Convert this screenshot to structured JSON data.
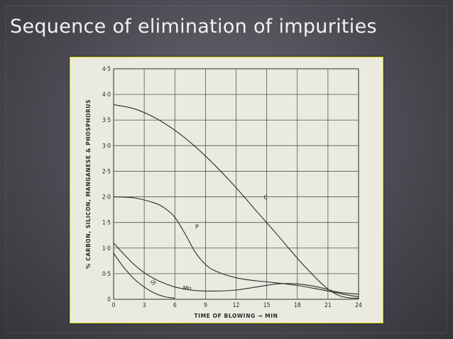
{
  "slide": {
    "title": "Sequence of elimination of impurities"
  },
  "chart_data": {
    "type": "line",
    "xlabel": "TIME OF BLOWING → MIN",
    "ylabel": "% CARBON, SILICON, MANGANESE & PHOSPHORUS",
    "xlim": [
      0,
      24
    ],
    "ylim": [
      0,
      4.5
    ],
    "x_ticks": [
      0,
      3,
      6,
      9,
      12,
      15,
      18,
      21,
      24
    ],
    "y_ticks": [
      0,
      0.5,
      1.0,
      1.5,
      2.0,
      2.5,
      3.0,
      3.5,
      4.0,
      4.5
    ],
    "x_tick_labels": [
      "0",
      "3",
      "6",
      "9",
      "12",
      "15",
      "18",
      "21",
      "24"
    ],
    "y_tick_labels": [
      "0",
      "0·5",
      "1·0",
      "1·5",
      "2·0",
      "2·5",
      "3·0",
      "3·5",
      "4·0",
      "4·5"
    ],
    "grid": true,
    "series": [
      {
        "name": "C",
        "x": [
          0,
          2,
          4,
          6,
          8,
          10,
          12,
          14,
          16,
          18,
          20,
          21,
          22,
          23,
          24
        ],
        "y": [
          3.8,
          3.72,
          3.55,
          3.3,
          2.98,
          2.6,
          2.18,
          1.72,
          1.27,
          0.8,
          0.38,
          0.2,
          0.08,
          0.03,
          0.02
        ]
      },
      {
        "name": "P",
        "x": [
          0,
          2,
          4,
          5,
          6,
          7,
          8,
          9,
          10,
          12,
          14,
          16,
          18,
          20,
          22,
          23,
          24
        ],
        "y": [
          2.0,
          1.98,
          1.88,
          1.78,
          1.6,
          1.28,
          0.92,
          0.68,
          0.55,
          0.42,
          0.36,
          0.32,
          0.27,
          0.2,
          0.12,
          0.08,
          0.05
        ]
      },
      {
        "name": "Mn",
        "x": [
          0,
          1,
          2,
          3,
          4,
          5,
          6,
          7,
          8,
          10,
          12,
          14,
          16,
          18,
          20,
          22,
          24
        ],
        "y": [
          1.1,
          0.88,
          0.68,
          0.52,
          0.4,
          0.31,
          0.24,
          0.2,
          0.17,
          0.16,
          0.18,
          0.24,
          0.3,
          0.3,
          0.24,
          0.14,
          0.1
        ]
      },
      {
        "name": "Si",
        "label": "Si",
        "x": [
          0,
          1,
          2,
          3,
          4,
          5,
          6
        ],
        "y": [
          0.9,
          0.62,
          0.4,
          0.24,
          0.12,
          0.05,
          0.02
        ]
      }
    ]
  }
}
